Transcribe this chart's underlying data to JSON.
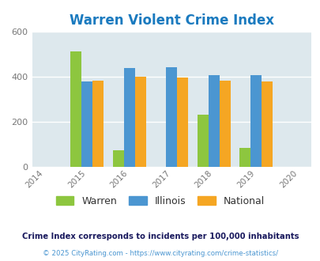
{
  "title": "Warren Violent Crime Index",
  "years": [
    2014,
    2015,
    2016,
    2017,
    2018,
    2019,
    2020
  ],
  "data_years": [
    2015,
    2016,
    2017,
    2018,
    2019
  ],
  "warren": [
    510,
    75,
    0,
    230,
    83
  ],
  "illinois": [
    380,
    438,
    442,
    405,
    405
  ],
  "national": [
    383,
    400,
    396,
    383,
    378
  ],
  "warren_color": "#8dc63f",
  "illinois_color": "#4b96d1",
  "national_color": "#f5a623",
  "bg_color": "#dde8ed",
  "ylim": [
    0,
    600
  ],
  "yticks": [
    0,
    200,
    400,
    600
  ],
  "title_color": "#1a7abf",
  "title_fontsize": 12,
  "legend_labels": [
    "Warren",
    "Illinois",
    "National"
  ],
  "footnote1": "Crime Index corresponds to incidents per 100,000 inhabitants",
  "footnote2": "© 2025 CityRating.com - https://www.cityrating.com/crime-statistics/",
  "footnote1_color": "#1a1a5e",
  "footnote2_color": "#4b96d1",
  "bar_width": 0.26
}
